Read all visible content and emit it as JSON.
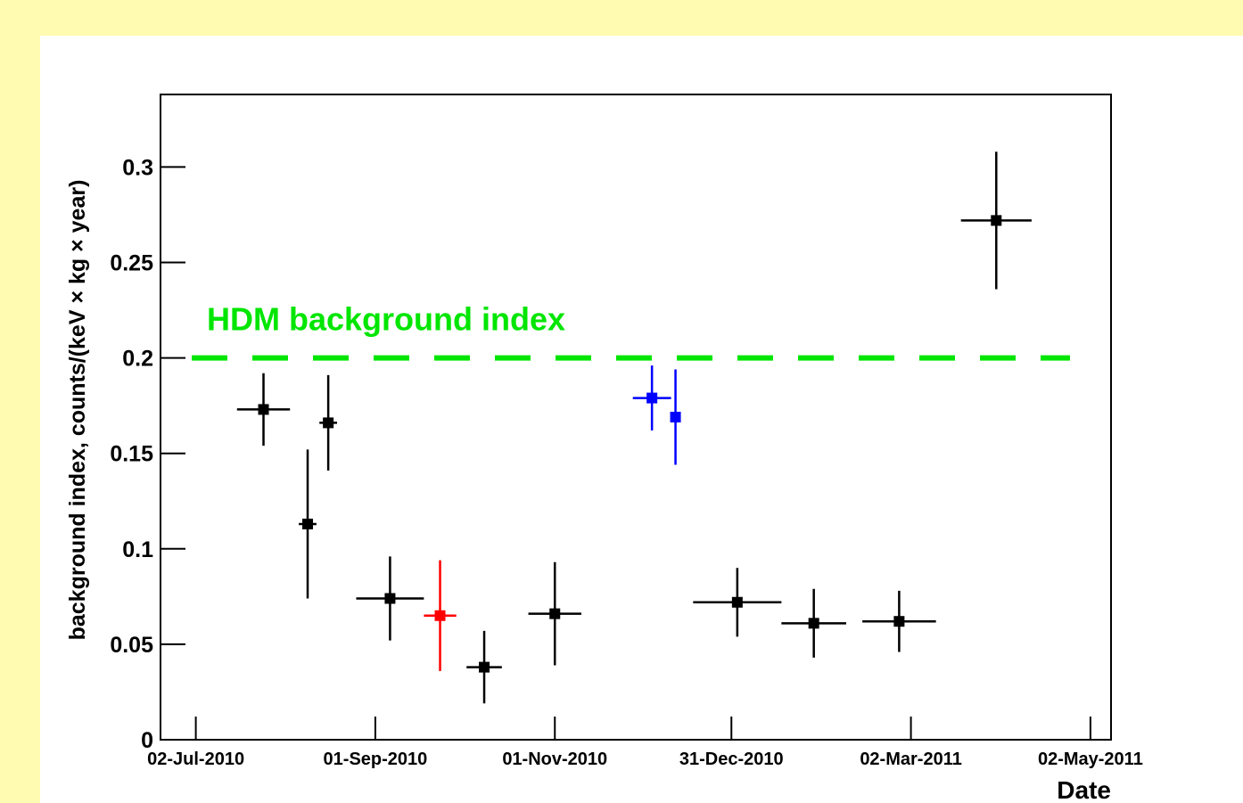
{
  "chart_data": {
    "type": "scatter",
    "x_label": "Date",
    "y_label": "background index, counts/(keV × kg × year)",
    "xlim": [
      "2010-06-20",
      "2011-05-09"
    ],
    "xticks": [
      {
        "value": "2010-07-02",
        "label": "02-Jul-2010"
      },
      {
        "value": "2010-09-01",
        "label": "01-Sep-2010"
      },
      {
        "value": "2010-11-01",
        "label": "01-Nov-2010"
      },
      {
        "value": "2010-12-31",
        "label": "31-Dec-2010"
      },
      {
        "value": "2011-03-02",
        "label": "02-Mar-2011"
      },
      {
        "value": "2011-05-02",
        "label": "02-May-2011"
      }
    ],
    "ylim": [
      0,
      0.338
    ],
    "yticks": [
      0,
      0.05,
      0.1,
      0.15,
      0.2,
      0.25,
      0.3
    ],
    "reference_line": {
      "value": 0.2,
      "label": "HDM background index",
      "color": "#00e600"
    },
    "series": [
      {
        "color": "#000000",
        "x": [
          "2010-07-25",
          "2010-08-09",
          "2010-08-16",
          "2010-09-06",
          "2010-10-08",
          "2010-11-01",
          "2011-01-02",
          "2011-01-28",
          "2011-02-26",
          "2011-03-31"
        ],
        "xerr": [
          9,
          3,
          3,
          11.5,
          6,
          9,
          15,
          11,
          12.5,
          12
        ],
        "values": [
          0.173,
          0.113,
          0.166,
          0.074,
          0.038,
          0.066,
          0.072,
          0.061,
          0.062,
          0.272
        ],
        "yerr": [
          0.019,
          0.039,
          0.025,
          0.022,
          0.019,
          0.027,
          0.018,
          0.018,
          0.016,
          0.036
        ]
      },
      {
        "color": "#ff0000",
        "x": [
          "2010-09-23"
        ],
        "xerr": [
          5.5
        ],
        "values": [
          0.065
        ],
        "yerr": [
          0.029
        ]
      },
      {
        "color": "#0000ff",
        "x": [
          "2010-12-04",
          "2010-12-12"
        ],
        "xerr": [
          6.5,
          1
        ],
        "values": [
          0.179,
          0.169
        ],
        "yerr": [
          0.017,
          0.025
        ]
      }
    ]
  }
}
